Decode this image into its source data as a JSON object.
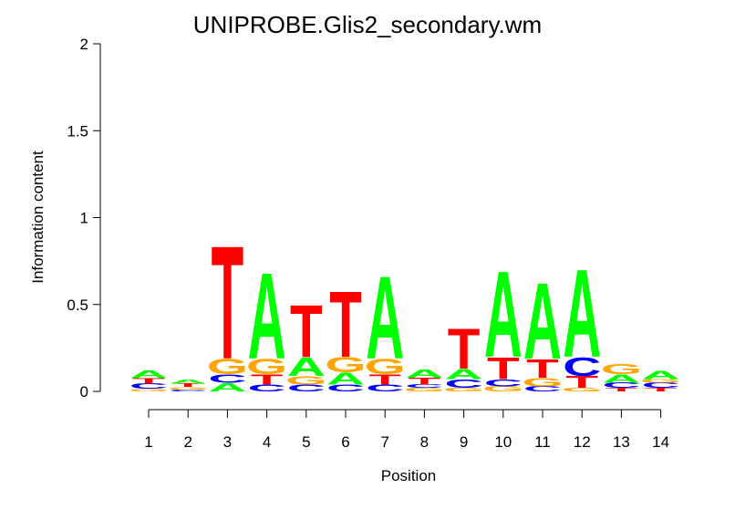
{
  "chart_data": {
    "type": "sequence-logo",
    "title": "UNIPROBE.Glis2_secondary.wm",
    "xlabel": "Position",
    "ylabel": "Information content",
    "ylim": [
      0,
      2
    ],
    "y_ticks": [
      "0",
      "0.5",
      "1",
      "1.5",
      "2"
    ],
    "positions": [
      "1",
      "2",
      "3",
      "4",
      "5",
      "6",
      "7",
      "8",
      "9",
      "10",
      "11",
      "12",
      "13",
      "14"
    ],
    "colors": {
      "A": "#00ff00",
      "C": "#0000ff",
      "G": "#ffa500",
      "T": "#ff0000"
    },
    "stacks": [
      [
        {
          "base": "G",
          "h": 0.015
        },
        {
          "base": "C",
          "h": 0.03
        },
        {
          "base": "T",
          "h": 0.03
        },
        {
          "base": "A",
          "h": 0.045
        }
      ],
      [
        {
          "base": "C",
          "h": 0.01
        },
        {
          "base": "G",
          "h": 0.015
        },
        {
          "base": "T",
          "h": 0.02
        },
        {
          "base": "A",
          "h": 0.025
        }
      ],
      [
        {
          "base": "A",
          "h": 0.05
        },
        {
          "base": "C",
          "h": 0.05
        },
        {
          "base": "G",
          "h": 0.09
        },
        {
          "base": "T",
          "h": 0.67
        }
      ],
      [
        {
          "base": "C",
          "h": 0.04
        },
        {
          "base": "T",
          "h": 0.06
        },
        {
          "base": "G",
          "h": 0.09
        },
        {
          "base": "A",
          "h": 0.51
        }
      ],
      [
        {
          "base": "C",
          "h": 0.04
        },
        {
          "base": "G",
          "h": 0.05
        },
        {
          "base": "A",
          "h": 0.11
        },
        {
          "base": "T",
          "h": 0.31
        }
      ],
      [
        {
          "base": "C",
          "h": 0.04
        },
        {
          "base": "A",
          "h": 0.07
        },
        {
          "base": "G",
          "h": 0.09
        },
        {
          "base": "T",
          "h": 0.39
        }
      ],
      [
        {
          "base": "C",
          "h": 0.04
        },
        {
          "base": "T",
          "h": 0.06
        },
        {
          "base": "G",
          "h": 0.09
        },
        {
          "base": "A",
          "h": 0.49
        }
      ],
      [
        {
          "base": "G",
          "h": 0.02
        },
        {
          "base": "C",
          "h": 0.02
        },
        {
          "base": "T",
          "h": 0.04
        },
        {
          "base": "A",
          "h": 0.05
        }
      ],
      [
        {
          "base": "G",
          "h": 0.02
        },
        {
          "base": "C",
          "h": 0.05
        },
        {
          "base": "A",
          "h": 0.06
        },
        {
          "base": "T",
          "h": 0.24
        }
      ],
      [
        {
          "base": "G",
          "h": 0.03
        },
        {
          "base": "C",
          "h": 0.04
        },
        {
          "base": "T",
          "h": 0.13
        },
        {
          "base": "A",
          "h": 0.51
        }
      ],
      [
        {
          "base": "C",
          "h": 0.03
        },
        {
          "base": "G",
          "h": 0.05
        },
        {
          "base": "T",
          "h": 0.11
        },
        {
          "base": "A",
          "h": 0.45
        }
      ],
      [
        {
          "base": "G",
          "h": 0.02
        },
        {
          "base": "T",
          "h": 0.07
        },
        {
          "base": "C",
          "h": 0.11
        },
        {
          "base": "A",
          "h": 0.52
        }
      ],
      [
        {
          "base": "T",
          "h": 0.02
        },
        {
          "base": "C",
          "h": 0.03
        },
        {
          "base": "A",
          "h": 0.05
        },
        {
          "base": "G",
          "h": 0.06
        }
      ],
      [
        {
          "base": "T",
          "h": 0.02
        },
        {
          "base": "C",
          "h": 0.03
        },
        {
          "base": "G",
          "h": 0.02
        },
        {
          "base": "A",
          "h": 0.05
        }
      ]
    ]
  }
}
